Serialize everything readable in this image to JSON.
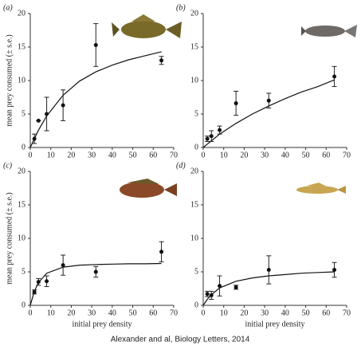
{
  "caption": "Alexander and al, Biology Letters, 2014",
  "chart_data": [
    {
      "type": "scatter",
      "label": "(a)",
      "ylabel": "mean prey consumed (± s.e.)",
      "x": [
        2,
        4,
        8,
        16,
        32,
        64
      ],
      "values": [
        1.3,
        4,
        5,
        6.3,
        15.3,
        13
      ],
      "errors": [
        0.7,
        0,
        2.5,
        2.3,
        3.2,
        0.6
      ],
      "fit": {
        "x": [
          0,
          2,
          4,
          8,
          16,
          24,
          32,
          40,
          48,
          56,
          64
        ],
        "values": [
          0,
          1.3,
          2.6,
          4.7,
          7.8,
          9.9,
          11.3,
          12.3,
          13.1,
          13.7,
          14.3
        ]
      },
      "xlim": [
        0,
        70
      ],
      "ylim": [
        0,
        20
      ],
      "xticks": [
        0,
        10,
        20,
        30,
        40,
        50,
        60,
        70
      ],
      "yticks": [
        0,
        5,
        10,
        15,
        20
      ]
    },
    {
      "type": "scatter",
      "label": "(b)",
      "x": [
        2,
        4,
        8,
        16,
        32,
        64
      ],
      "values": [
        1.3,
        1.7,
        2.6,
        6.6,
        7,
        10.6
      ],
      "errors": [
        0.4,
        0.8,
        0.6,
        1.8,
        1.1,
        1.5
      ],
      "fit": {
        "x": [
          0,
          2,
          4,
          8,
          16,
          24,
          32,
          40,
          48,
          56,
          64
        ],
        "values": [
          0,
          0.5,
          1.0,
          2.0,
          3.6,
          5.0,
          6.2,
          7.3,
          8.3,
          9.1,
          10.1
        ]
      },
      "xlim": [
        0,
        70
      ],
      "ylim": [
        0,
        20
      ],
      "xticks": [
        0,
        10,
        20,
        30,
        40,
        50,
        60,
        70
      ],
      "yticks": [
        0,
        5,
        10,
        15,
        20
      ]
    },
    {
      "type": "scatter",
      "label": "(c)",
      "ylabel": "mean prey consumed (± s.e.)",
      "xlabel": "initial prey density",
      "x": [
        2,
        4,
        8,
        16,
        32,
        64
      ],
      "values": [
        2,
        3.5,
        3.6,
        6,
        5,
        8
      ],
      "errors": [
        0.3,
        0.5,
        0.8,
        1.5,
        0.8,
        1.5
      ],
      "fit": {
        "x": [
          0,
          2,
          4,
          8,
          16,
          24,
          32,
          40,
          48,
          56,
          64
        ],
        "values": [
          0,
          2.1,
          3.4,
          4.8,
          5.7,
          6.0,
          6.1,
          6.15,
          6.2,
          6.2,
          6.25
        ]
      },
      "xlim": [
        0,
        70
      ],
      "ylim": [
        0,
        20
      ],
      "xticks": [
        0,
        10,
        20,
        30,
        40,
        50,
        60,
        70
      ],
      "yticks": [
        0,
        5,
        10,
        15,
        20
      ]
    },
    {
      "type": "scatter",
      "label": "(d)",
      "xlabel": "initial prey density",
      "x": [
        2,
        4,
        8,
        16,
        32,
        64
      ],
      "values": [
        1.7,
        1.5,
        2.9,
        2.7,
        5.3,
        5.3
      ],
      "errors": [
        0.4,
        0.6,
        1.5,
        0.3,
        2.1,
        1.1
      ],
      "fit": {
        "x": [
          0,
          2,
          4,
          8,
          16,
          24,
          32,
          40,
          48,
          56,
          64
        ],
        "values": [
          0,
          0.9,
          1.6,
          2.6,
          3.6,
          4.1,
          4.4,
          4.6,
          4.8,
          4.9,
          5.0
        ]
      },
      "xlim": [
        0,
        70
      ],
      "ylim": [
        0,
        20
      ],
      "xticks": [
        0,
        10,
        20,
        30,
        40,
        50,
        60,
        70
      ],
      "yticks": [
        0,
        5,
        10,
        15,
        20
      ]
    }
  ]
}
